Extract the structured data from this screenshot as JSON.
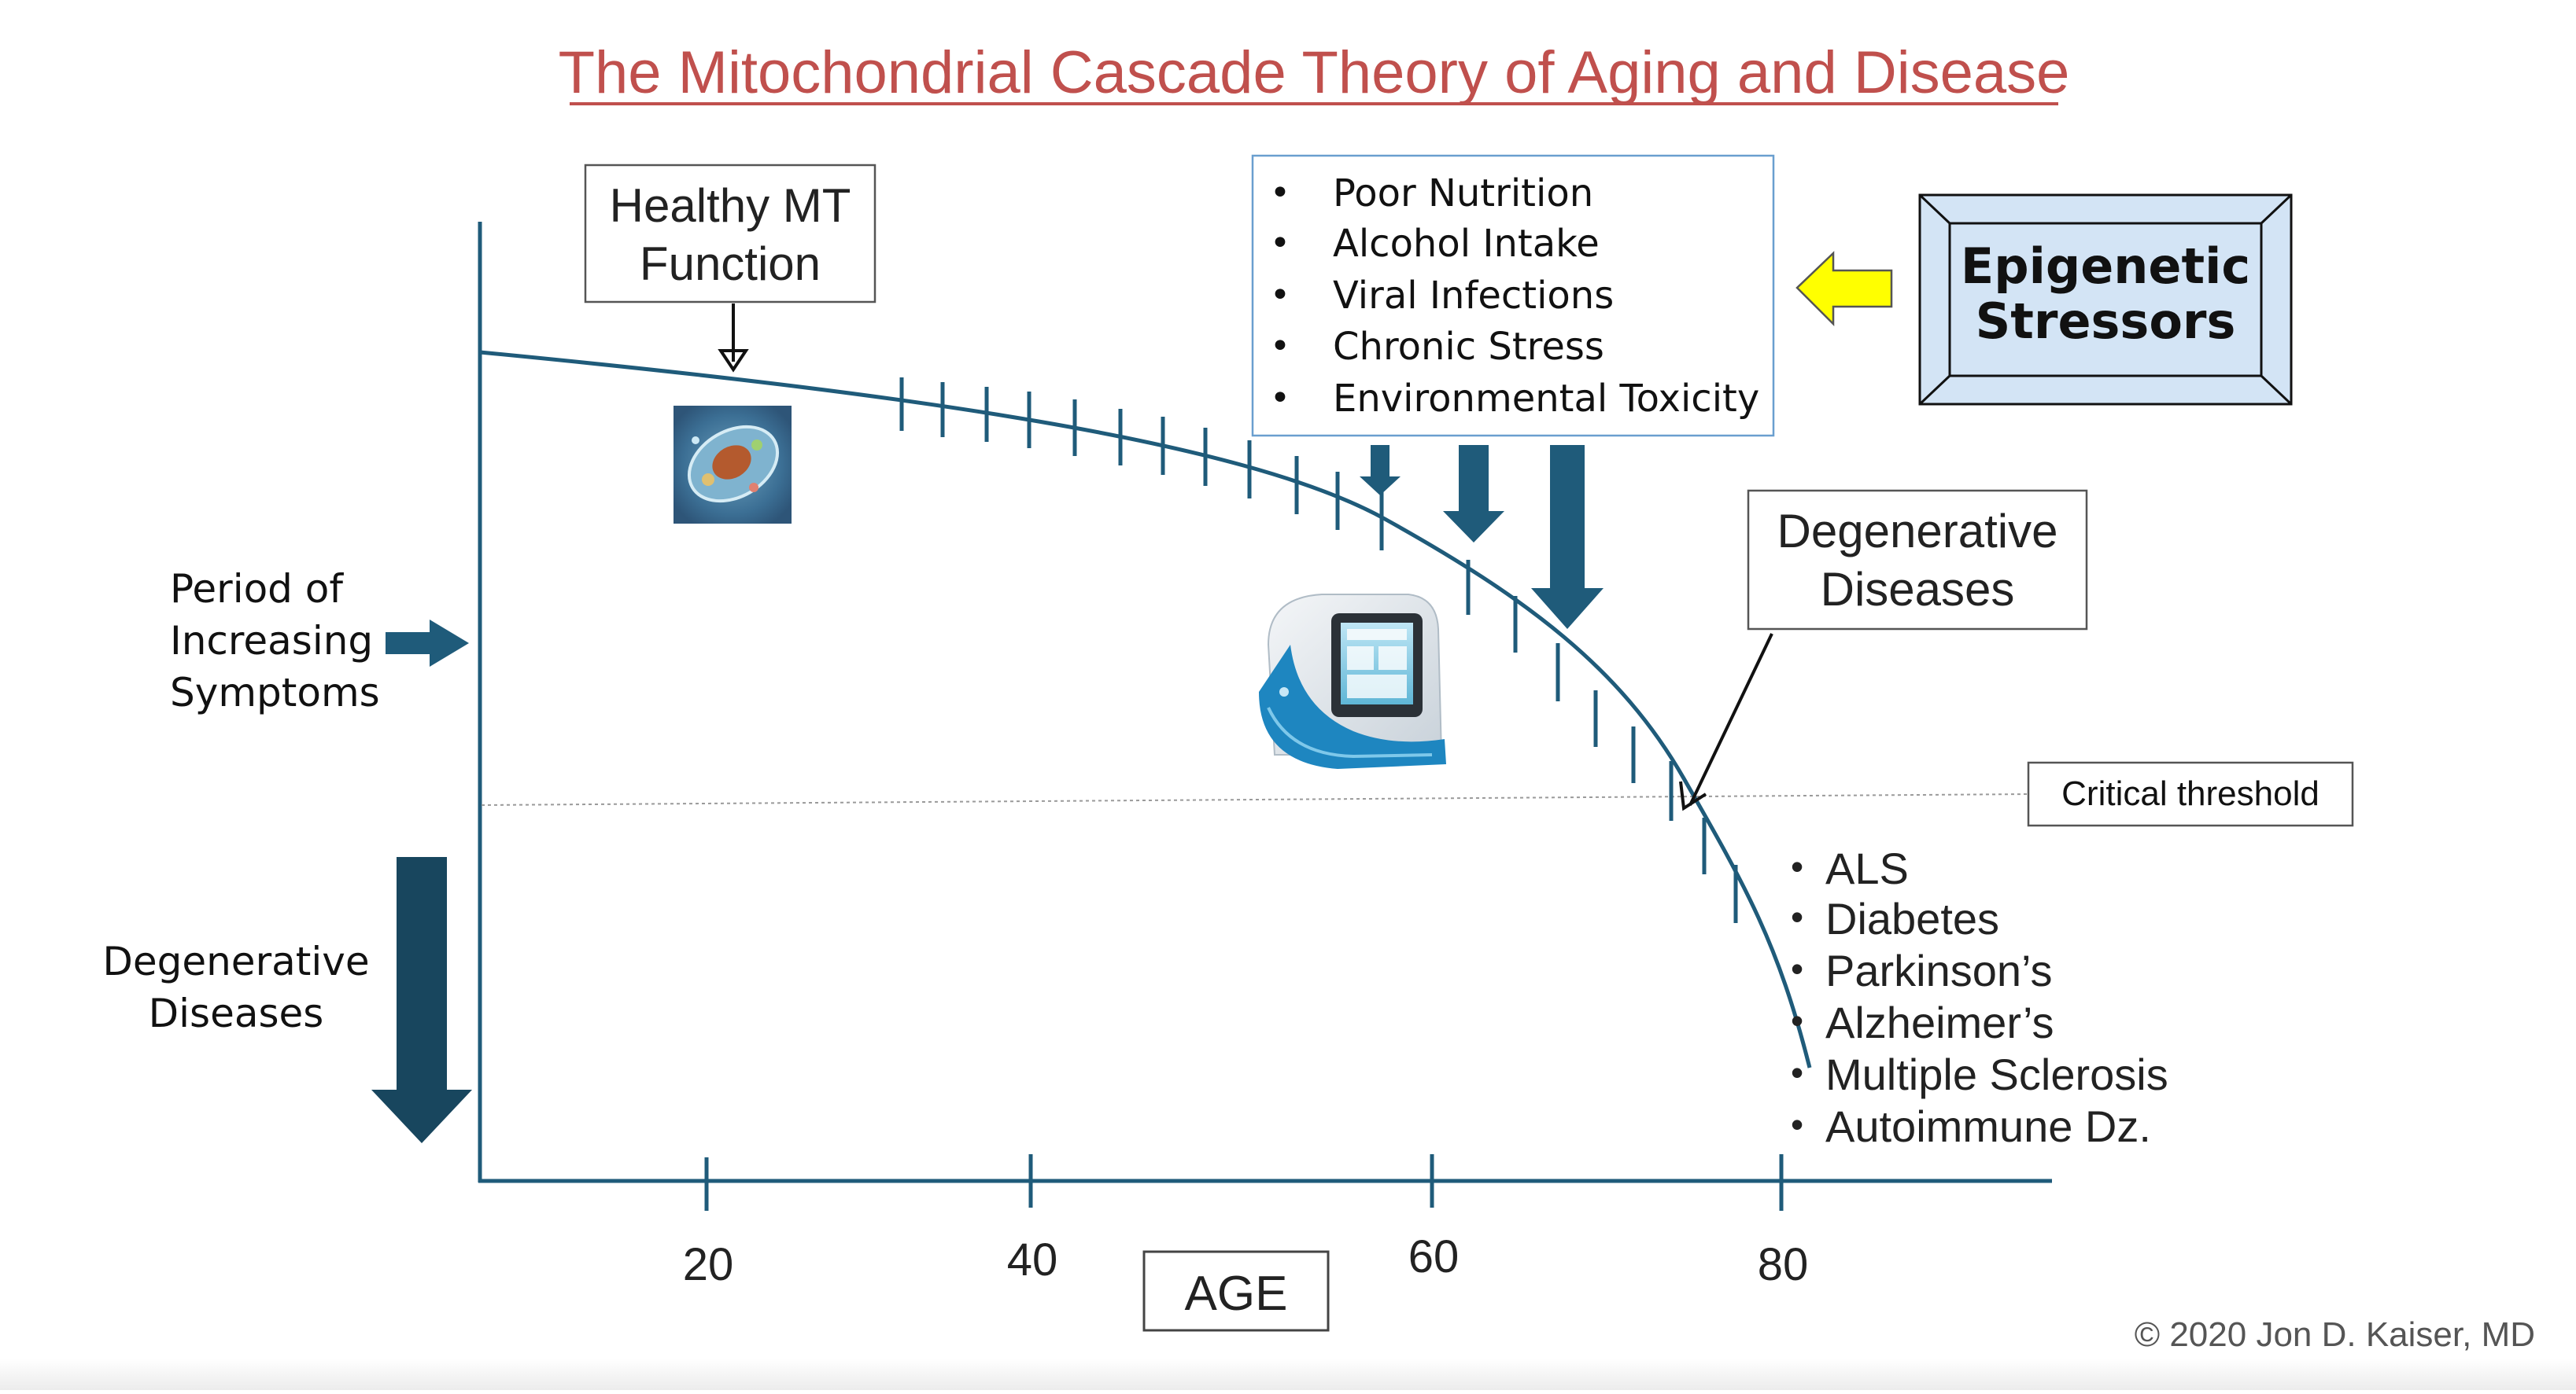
{
  "title": "The Mitochondrial Cascade Theory of Aging and Disease",
  "healthy_box": {
    "line1": "Healthy MT",
    "line2": "Function"
  },
  "stressor_list": [
    "Poor Nutrition",
    "Alcohol Intake",
    "Viral Infections",
    "Chronic Stress",
    "Environmental Toxicity"
  ],
  "epigenetic_box": {
    "line1": "Epigenetic",
    "line2": "Stressors"
  },
  "degenerative_box": {
    "line1": "Degenerative",
    "line2": "Diseases"
  },
  "left_symptoms": {
    "line1": "Period of",
    "line2": "Increasing",
    "line3": "Symptoms"
  },
  "left_degenerative": {
    "line1": "Degenerative",
    "line2": "Diseases"
  },
  "critical_threshold": "Critical threshold",
  "disease_list": [
    "ALS",
    "Diabetes",
    "Parkinson’s",
    "Alzheimer’s",
    "Multiple Sclerosis",
    "Autoimmune Dz."
  ],
  "axis": {
    "ticks": [
      "20",
      "40",
      "60",
      "80"
    ],
    "label": "AGE"
  },
  "copyright": "© 2020 Jon D. Kaiser, MD",
  "colors": {
    "title": "#c0504d",
    "curve": "#1f5b7a",
    "dark_arrow": "#18465e",
    "yellow_arrow": "#ffff00",
    "epigenetic_fill": "#d3e4f5",
    "stressor_border": "#6a9fcf",
    "threshold": "#9a9a9a"
  },
  "icons": {
    "cell": "cell-image",
    "device": "seahorse-analyzer-image"
  }
}
